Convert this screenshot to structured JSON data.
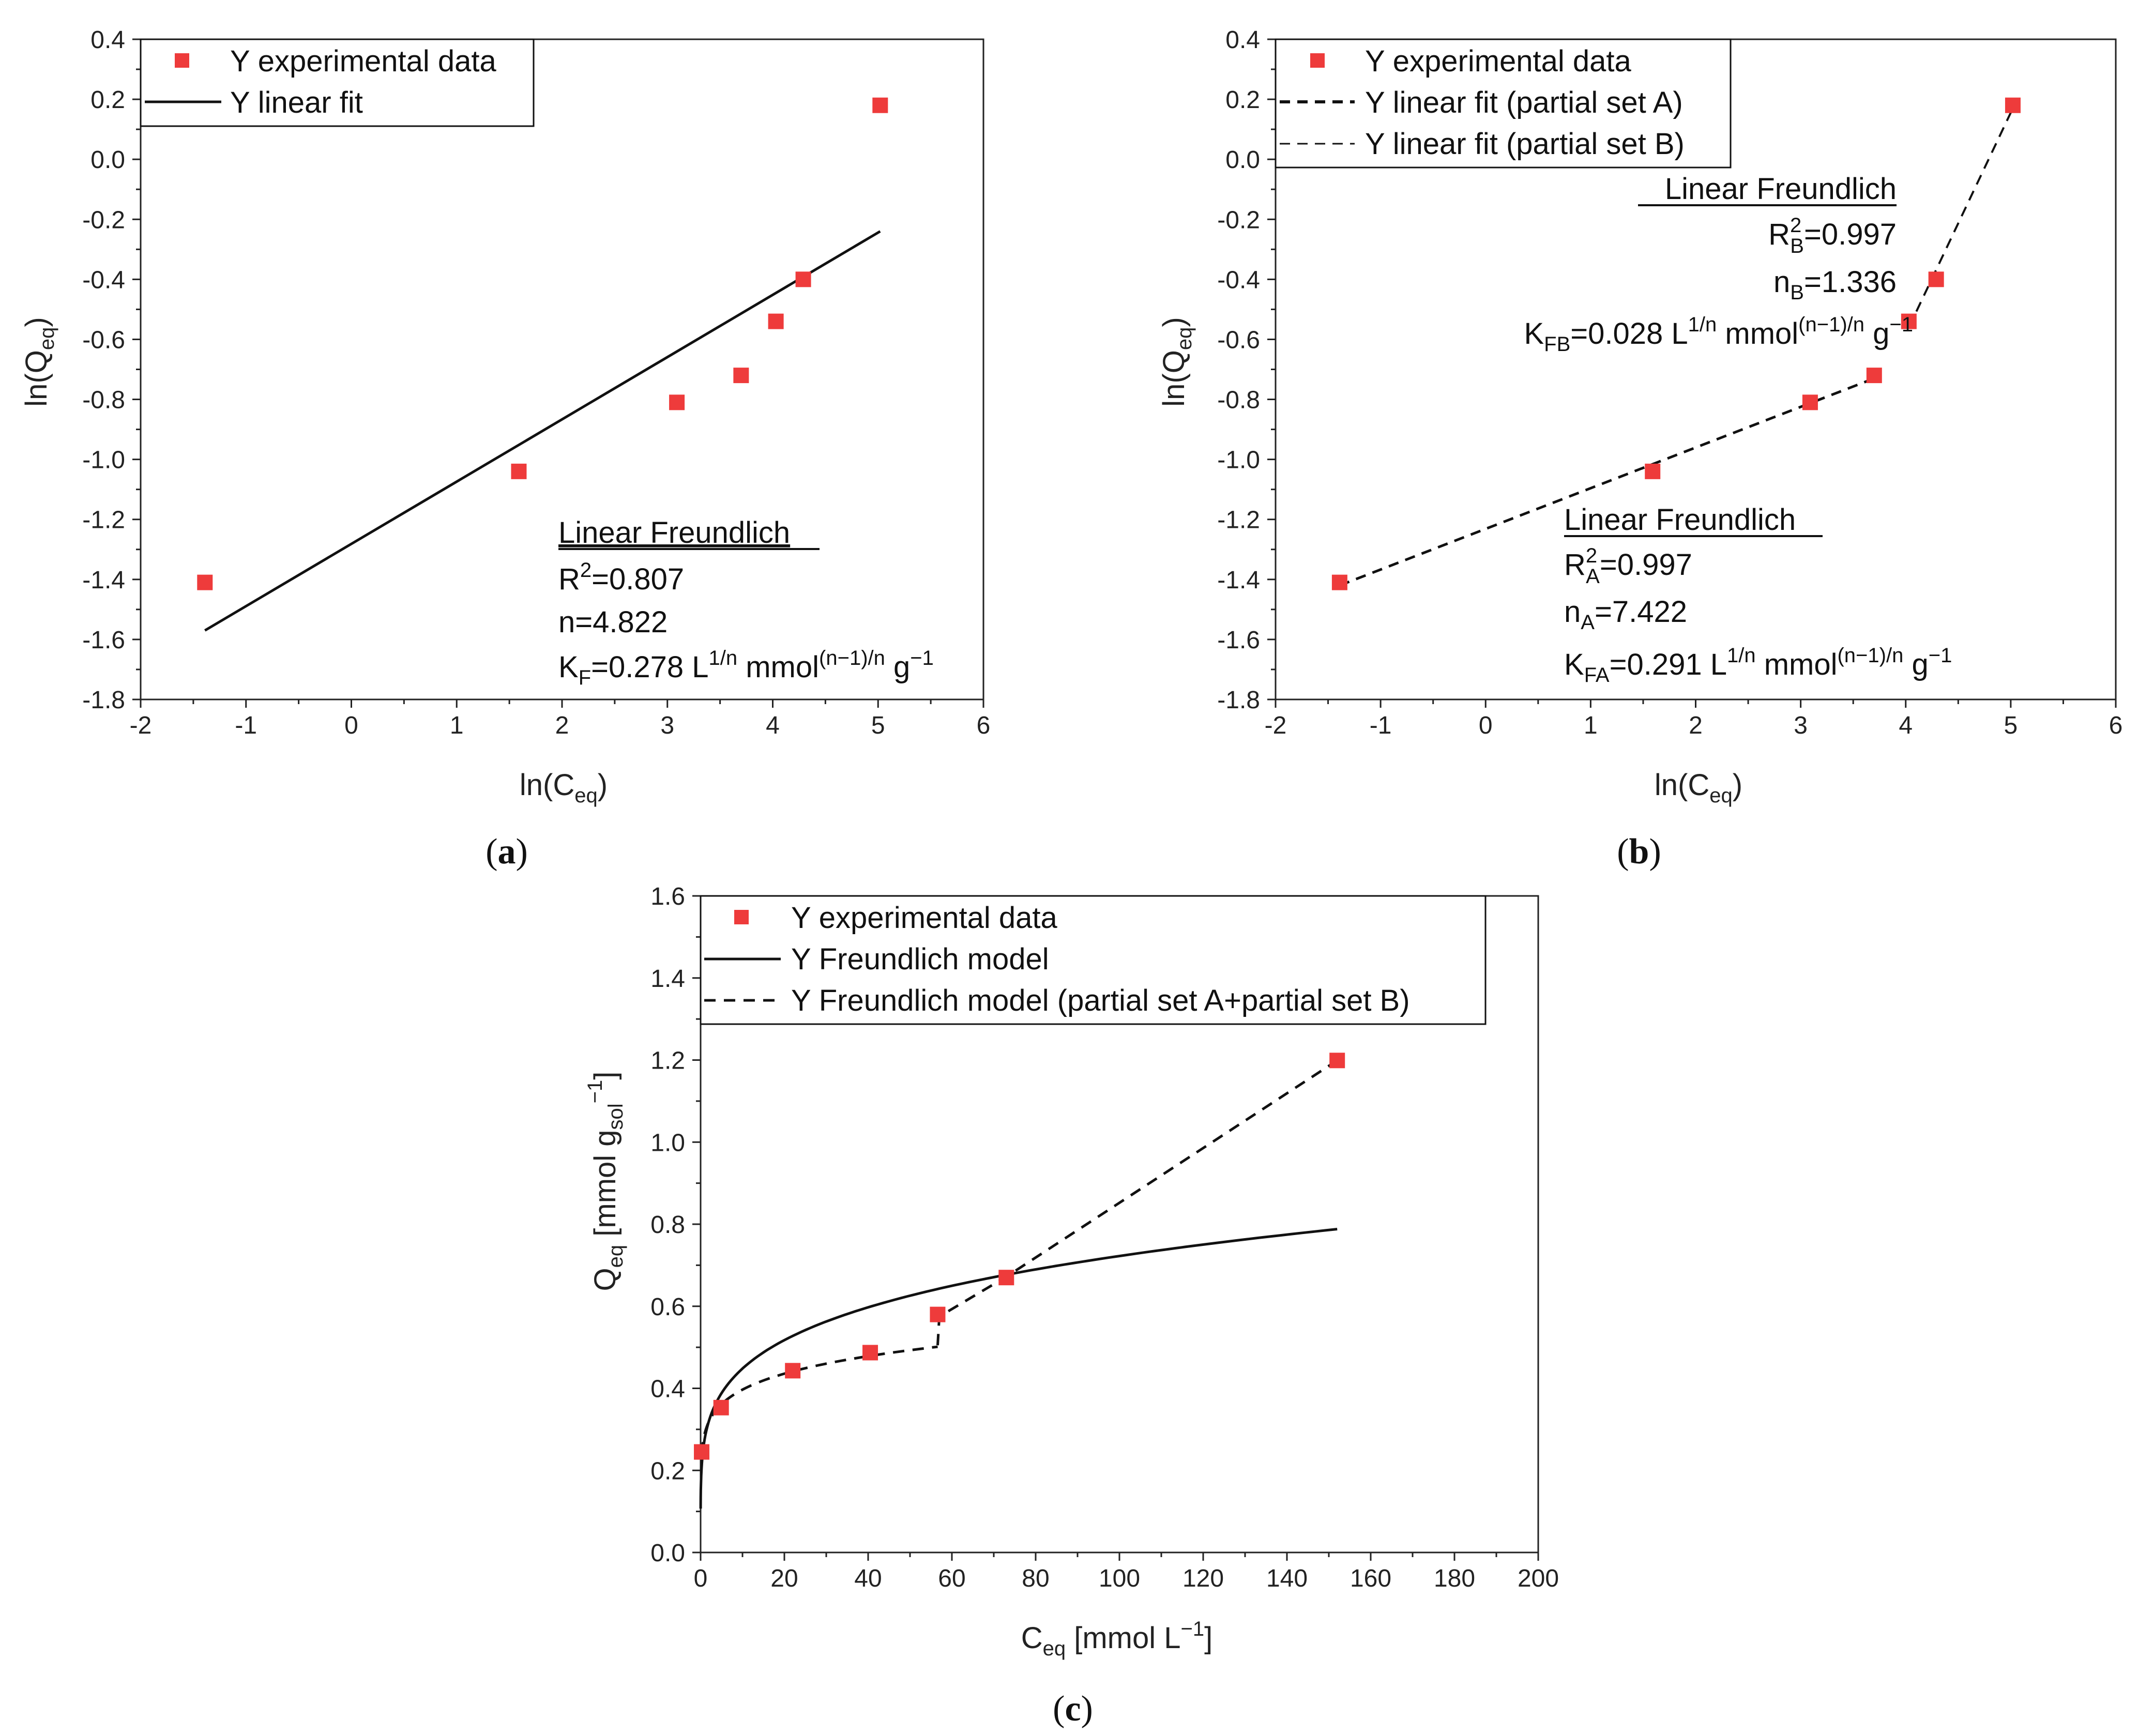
{
  "colors": {
    "marker": "#EE3B3B",
    "line": "#111111",
    "axis": "#222222"
  },
  "chart_data": [
    {
      "id": "a",
      "type": "scatter",
      "caption": "a",
      "xlabel": "ln(C",
      "xlabel_sub": "eq",
      "xlabel_end": ")",
      "ylabel": "ln(Q",
      "ylabel_sub": "eq",
      "ylabel_end": ")",
      "xlim": [
        -2,
        6
      ],
      "ylim": [
        -1.8,
        0.4
      ],
      "xticks": [
        "-2",
        "-1",
        "0",
        "1",
        "2",
        "3",
        "4",
        "5",
        "6"
      ],
      "yticks": [
        "-1.8",
        "-1.6",
        "-1.4",
        "-1.2",
        "-1.0",
        "-0.8",
        "-0.6",
        "-0.4",
        "-0.2",
        "0.0",
        "0.2",
        "0.4"
      ],
      "legend": {
        "position": "top-left",
        "entries": [
          "Y experimental data",
          "Y linear fit"
        ]
      },
      "points": {
        "x": [
          -1.39,
          1.59,
          3.09,
          3.7,
          4.03,
          4.29,
          5.02
        ],
        "y": [
          -1.41,
          -1.04,
          -0.81,
          -0.72,
          -0.54,
          -0.4,
          0.18
        ]
      },
      "fit_line": {
        "x": [
          -1.39,
          5.02
        ],
        "y": [
          -1.57,
          -0.24
        ]
      },
      "annotation": {
        "title": "Linear Freundlich",
        "r2_label": "R",
        "r2_sup": "2",
        "r2_value": "=0.807",
        "n_label": "n=4.822",
        "k_label": "K",
        "k_sub": "F",
        "k_value": "=0.278 L",
        "k_sup1": "1/n",
        "k_mid": " mmol",
        "k_sup2": "(n−1)/n",
        "k_end": " g",
        "k_sup3": "−1"
      }
    },
    {
      "id": "b",
      "type": "scatter",
      "caption": "b",
      "xlabel": "ln(C",
      "xlabel_sub": "eq",
      "xlabel_end": ")",
      "ylabel": "ln(Q",
      "ylabel_sub": "eq",
      "ylabel_end": ")",
      "xlim": [
        -2,
        6
      ],
      "ylim": [
        -1.8,
        0.4
      ],
      "xticks": [
        "-2",
        "-1",
        "0",
        "1",
        "2",
        "3",
        "4",
        "5",
        "6"
      ],
      "yticks": [
        "-1.8",
        "-1.6",
        "-1.4",
        "-1.2",
        "-1.0",
        "-0.8",
        "-0.6",
        "-0.4",
        "-0.2",
        "0.0",
        "0.2",
        "0.4"
      ],
      "legend": {
        "position": "top-left",
        "entries": [
          "Y experimental data",
          "Y linear fit (partial set A)",
          "Y linear fit (partial set B)"
        ]
      },
      "points": {
        "x": [
          -1.39,
          1.59,
          3.09,
          3.7,
          4.03,
          4.29,
          5.02
        ],
        "y": [
          -1.41,
          -1.04,
          -0.81,
          -0.72,
          -0.54,
          -0.4,
          0.18
        ]
      },
      "fit_a": {
        "x": [
          -1.39,
          3.7
        ],
        "y": [
          -1.42,
          -0.73
        ]
      },
      "fit_b": {
        "x": [
          4.03,
          5.02
        ],
        "y": [
          -0.56,
          0.17
        ]
      },
      "annotation_b": {
        "title": "Linear Freundlich",
        "r2_label": "R",
        "r2_sup": "2",
        "r2_sub": "B",
        "r2_value": "=0.997",
        "n_label": "n",
        "n_sub": "B",
        "n_value": "=1.336",
        "k_label": "K",
        "k_sub": "FB",
        "k_value": "=0.028 L",
        "k_sup1": "1/n",
        "k_mid": " mmol",
        "k_sup2": "(n−1)/n",
        "k_end": " g",
        "k_sup3": "−1"
      },
      "annotation_a": {
        "title": "Linear Freundlich",
        "r2_label": "R",
        "r2_sup": "2",
        "r2_sub": "A",
        "r2_value": "=0.997",
        "n_label": "n",
        "n_sub": "A",
        "n_value": "=7.422",
        "k_label": "K",
        "k_sub": "FA",
        "k_value": "=0.291 L",
        "k_sup1": "1/n",
        "k_mid": " mmol",
        "k_sup2": "(n−1)/n",
        "k_end": " g",
        "k_sup3": "−1"
      }
    },
    {
      "id": "c",
      "type": "scatter",
      "caption": "c",
      "xlabel": "C",
      "xlabel_sub": "eq",
      "xlabel_end": " [mmol L",
      "xlabel_sup": "−1",
      "xlabel_close": "]",
      "ylabel": "Q",
      "ylabel_sub": "eq",
      "ylabel_mid": " [mmol g",
      "ylabel_sub2": "sol",
      "ylabel_sup": "−1",
      "ylabel_end": "]",
      "xlim": [
        0,
        200
      ],
      "ylim": [
        0.0,
        1.6
      ],
      "xticks": [
        "0",
        "20",
        "40",
        "60",
        "80",
        "100",
        "120",
        "140",
        "160",
        "180",
        "200"
      ],
      "yticks": [
        "0.0",
        "0.2",
        "0.4",
        "0.6",
        "0.8",
        "1.0",
        "1.2",
        "1.4",
        "1.6"
      ],
      "legend": {
        "position": "top-left",
        "entries": [
          "Y experimental data",
          "Y Freundlich model",
          "Y Freundlich model (partial set A+partial set B)"
        ]
      },
      "points": {
        "x": [
          0.25,
          4.9,
          22.0,
          40.5,
          56.6,
          73.0,
          152.0
        ],
        "y": [
          0.245,
          0.353,
          0.443,
          0.487,
          0.58,
          0.67,
          1.199
        ]
      },
      "freundlich": {
        "kf": 0.278,
        "n": 4.822,
        "x_start": 0.01,
        "x_end": 152
      },
      "partial_a": {
        "kf": 0.291,
        "n": 7.422,
        "x_start": 0.25,
        "x_end": 56.6
      },
      "partial_b": {
        "x": [
          56.6,
          57.0,
          73.0,
          152.0
        ],
        "y": [
          0.505,
          0.575,
          0.672,
          1.199
        ]
      }
    }
  ]
}
